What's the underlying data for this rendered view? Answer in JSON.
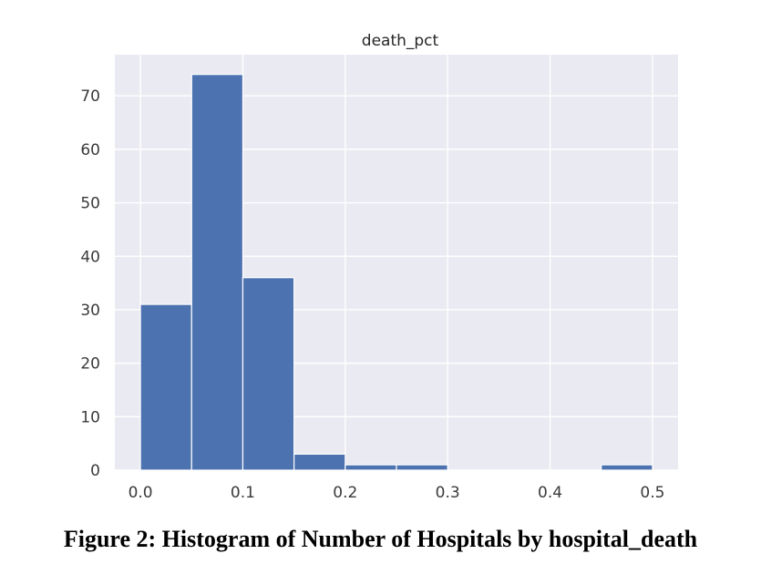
{
  "caption": "Figure 2: Histogram of Number of Hospitals by hospital_death",
  "colors": {
    "plot_background": "#eaeaf2",
    "grid": "#ffffff",
    "bar_fill": "#4c72b0",
    "bar_edge": "#ffffff"
  },
  "chart_data": {
    "type": "bar",
    "title": "death_pct",
    "xlabel": "",
    "ylabel": "",
    "bins": [
      {
        "start": 0.0,
        "end": 0.05,
        "count": 31
      },
      {
        "start": 0.05,
        "end": 0.1,
        "count": 74
      },
      {
        "start": 0.1,
        "end": 0.15,
        "count": 36
      },
      {
        "start": 0.15,
        "end": 0.2,
        "count": 3
      },
      {
        "start": 0.2,
        "end": 0.25,
        "count": 1
      },
      {
        "start": 0.25,
        "end": 0.3,
        "count": 1
      },
      {
        "start": 0.3,
        "end": 0.35,
        "count": 0
      },
      {
        "start": 0.35,
        "end": 0.4,
        "count": 0
      },
      {
        "start": 0.4,
        "end": 0.45,
        "count": 0
      },
      {
        "start": 0.45,
        "end": 0.5,
        "count": 1
      }
    ],
    "xlim": [
      -0.025,
      0.525
    ],
    "ylim": [
      0,
      77.7
    ],
    "xticks": [
      0.0,
      0.1,
      0.2,
      0.3,
      0.4,
      0.5
    ],
    "xtick_labels": [
      "0.0",
      "0.1",
      "0.2",
      "0.3",
      "0.4",
      "0.5"
    ],
    "yticks": [
      0,
      10,
      20,
      30,
      40,
      50,
      60,
      70
    ],
    "ytick_labels": [
      "0",
      "10",
      "20",
      "30",
      "40",
      "50",
      "60",
      "70"
    ],
    "grid": true,
    "legend": "none"
  }
}
